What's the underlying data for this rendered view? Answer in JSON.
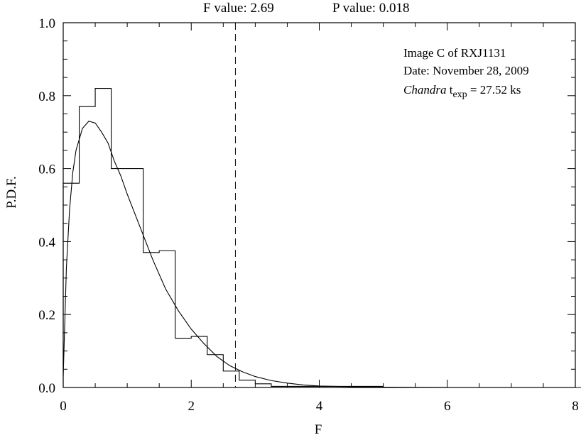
{
  "chart_data": {
    "type": "line",
    "header": {
      "f_value": "F value: 2.69",
      "p_value": "P value:  0.018"
    },
    "xlabel": "F",
    "ylabel": "P.D.F.",
    "xlim": [
      0,
      8
    ],
    "ylim": [
      0,
      1.0
    ],
    "x_ticks": [
      {
        "value": 0,
        "label": "0"
      },
      {
        "value": 2,
        "label": "2"
      },
      {
        "value": 4,
        "label": "4"
      },
      {
        "value": 6,
        "label": "6"
      },
      {
        "value": 8,
        "label": "8"
      }
    ],
    "y_ticks": [
      {
        "value": 0.0,
        "label": "0.0"
      },
      {
        "value": 0.2,
        "label": "0.2"
      },
      {
        "value": 0.4,
        "label": "0.4"
      },
      {
        "value": 0.6,
        "label": "0.6"
      },
      {
        "value": 0.8,
        "label": "0.8"
      },
      {
        "value": 1.0,
        "label": "1.0"
      }
    ],
    "x_minor_step": 0.5,
    "y_minor_step": 0.05,
    "annotation": {
      "line1": "Image C of RXJ1131",
      "line2": "Date: November 28, 2009",
      "line3_italic": "Chandra",
      "line3_t": " t",
      "line3_sub": "exp",
      "line3_rest": " = 27.52 ks"
    },
    "threshold": {
      "x": 2.69,
      "style": "dashed"
    },
    "histogram": {
      "bin_width": 0.25,
      "edges_start": 0,
      "values": [
        0.56,
        0.77,
        0.82,
        0.6,
        0.6,
        0.37,
        0.375,
        0.135,
        0.14,
        0.09,
        0.045,
        0.02,
        0.01,
        0.003,
        0.003,
        0.003,
        0.003,
        0.003,
        0.003,
        0.003,
        0.0,
        0.0,
        0.0,
        0.0,
        0.0,
        0.0,
        0.0,
        0.0,
        0.0,
        0.0,
        0.0,
        0.0,
        0.0,
        0.0,
        0.0,
        0.0,
        0.0,
        0.0,
        0.0,
        0.0,
        0.008,
        0.0
      ]
    },
    "fit_curve": {
      "x": [
        0.0,
        0.05,
        0.1,
        0.15,
        0.2,
        0.3,
        0.4,
        0.5,
        0.6,
        0.7,
        0.8,
        0.9,
        1.0,
        1.2,
        1.4,
        1.6,
        1.8,
        2.0,
        2.2,
        2.4,
        2.6,
        2.8,
        3.0,
        3.25,
        3.5,
        3.75,
        4.0,
        4.5,
        5.0,
        5.5,
        6.0
      ],
      "y": [
        0.03,
        0.33,
        0.49,
        0.59,
        0.65,
        0.71,
        0.73,
        0.725,
        0.7,
        0.67,
        0.62,
        0.58,
        0.53,
        0.44,
        0.35,
        0.27,
        0.21,
        0.16,
        0.12,
        0.085,
        0.06,
        0.043,
        0.03,
        0.019,
        0.012,
        0.007,
        0.004,
        0.002,
        0.0008,
        0.0003,
        0.0001
      ]
    },
    "grid": false,
    "legend": "none"
  }
}
